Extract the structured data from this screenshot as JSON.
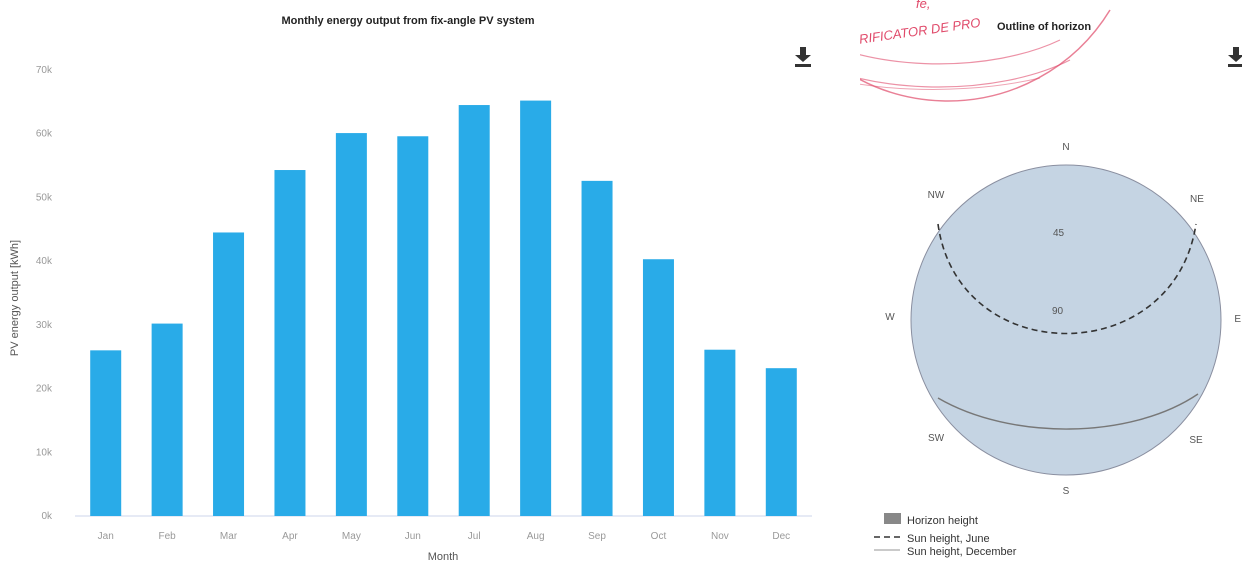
{
  "chart_data": [
    {
      "type": "bar",
      "title": "Monthly energy output from fix-angle PV system",
      "xlabel": "Month",
      "ylabel": "PV energy output [kWh]",
      "categories": [
        "Jan",
        "Feb",
        "Mar",
        "Apr",
        "May",
        "Jun",
        "Jul",
        "Aug",
        "Sep",
        "Oct",
        "Nov",
        "Dec"
      ],
      "values": [
        26000,
        30200,
        44500,
        54300,
        60100,
        59600,
        64500,
        65200,
        52600,
        40300,
        26100,
        23200
      ],
      "ylim": [
        0,
        70000
      ],
      "yticks": [
        "0k",
        "10k",
        "20k",
        "30k",
        "40k",
        "50k",
        "60k",
        "70k"
      ],
      "bar_color": "#29abe8",
      "grid": false
    },
    {
      "type": "polar",
      "title": "Outline of horizon",
      "compass_labels": [
        "N",
        "NE",
        "E",
        "SE",
        "S",
        "SW",
        "W",
        "NW"
      ],
      "radial_labels": [
        "45",
        "90"
      ],
      "legend": [
        "Horizon height",
        "Sun height, June",
        "Sun height, December"
      ],
      "horizon_color": "#c5d4e3",
      "legend_position": "bottom-left"
    }
  ],
  "stamp": {
    "text": "R - VERIFICATOR DE PRO",
    "fragment": "fe,",
    "color": "#e04a6a"
  },
  "icons": [
    "download-icon",
    "download-icon"
  ]
}
